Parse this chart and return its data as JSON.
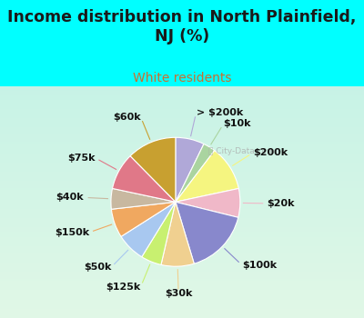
{
  "title": "Income distribution in North Plainfield,\nNJ (%)",
  "subtitle": "White residents",
  "title_color": "#1a1a1a",
  "subtitle_color": "#c87030",
  "bg_color": "#00ffff",
  "labels": [
    "> $200k",
    "$10k",
    "$200k",
    "$20k",
    "$100k",
    "$30k",
    "$125k",
    "$50k",
    "$150k",
    "$40k",
    "$75k",
    "$60k"
  ],
  "values": [
    7,
    3,
    11,
    7,
    16,
    8,
    5,
    7,
    7,
    5,
    9,
    12
  ],
  "colors": [
    "#b0a8d8",
    "#aad4a0",
    "#f5f580",
    "#f0b8c8",
    "#8888cc",
    "#f0d090",
    "#c8f070",
    "#a8c8f0",
    "#f0a860",
    "#c8b8a0",
    "#e07888",
    "#c8a030"
  ],
  "label_fontsize": 8.0,
  "chart_bg_topleft": [
    0.88,
    0.97,
    0.9
  ],
  "chart_bg_botright": [
    0.78,
    0.95,
    0.9
  ]
}
